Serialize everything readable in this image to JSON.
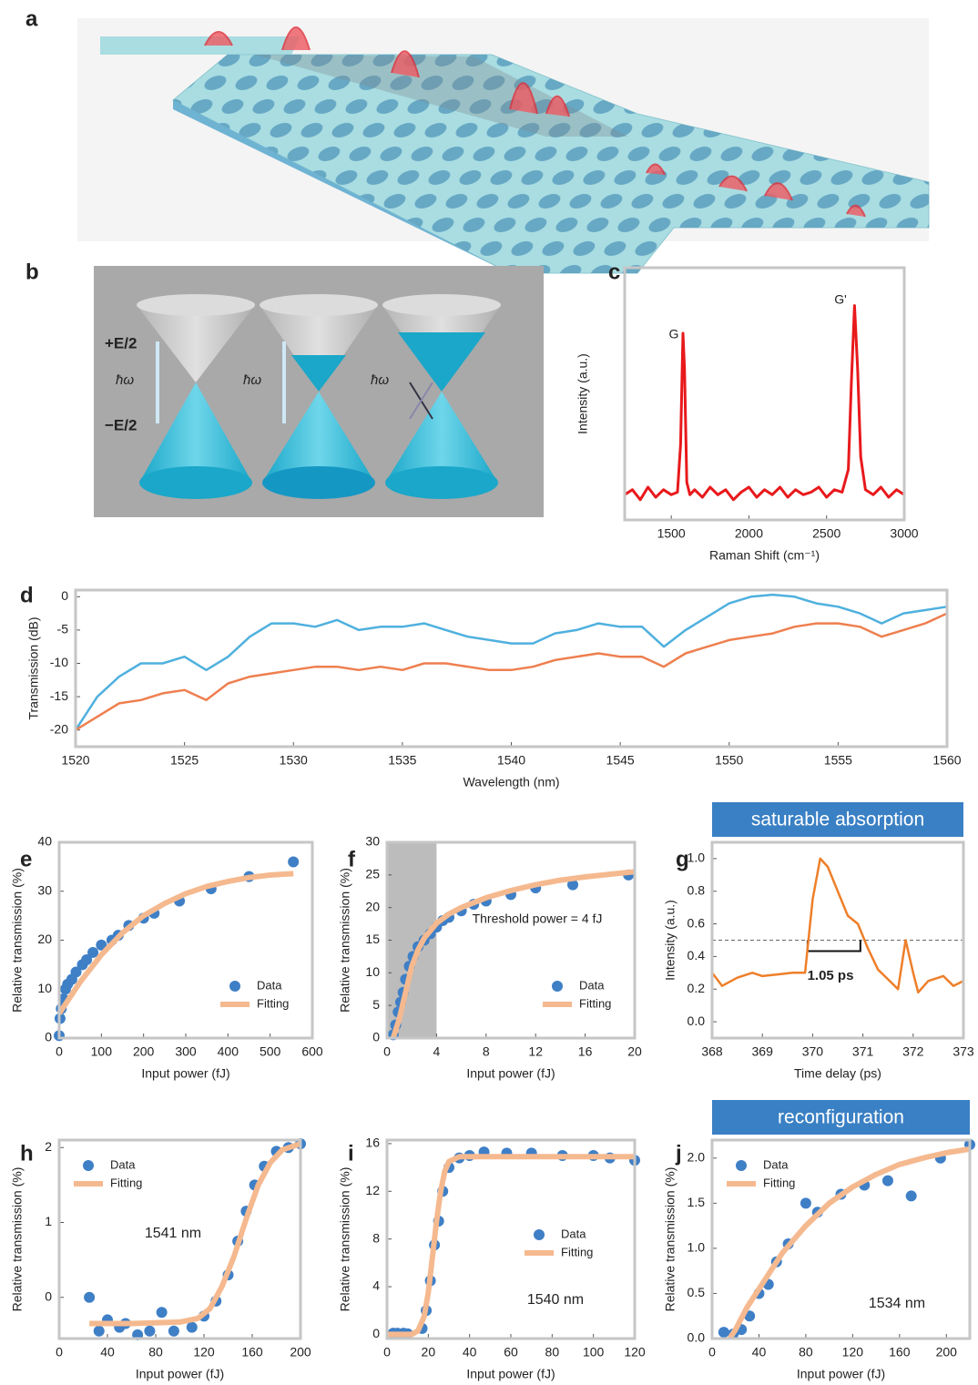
{
  "figure": {
    "panel_labels": [
      "a",
      "b",
      "c",
      "d",
      "e",
      "f",
      "g",
      "h",
      "i",
      "j"
    ],
    "b_labels": [
      "+E/2",
      "ħω",
      "ħω",
      "ħω",
      "−E/2"
    ]
  },
  "chart_data": [
    {
      "type": "line",
      "xlabel": "Raman Shift (cm⁻¹)",
      "ylabel": "Intensity (a.u.)",
      "xlim": [
        1200,
        3000
      ],
      "ylim": [
        0,
        1
      ],
      "xticks": [
        1500,
        2000,
        2500,
        3000
      ],
      "annotations": [
        "G",
        "G'"
      ],
      "series": [
        {
          "type": "line",
          "color": "#e8191c",
          "x": [
            1200,
            1250,
            1300,
            1350,
            1400,
            1450,
            1500,
            1540,
            1560,
            1575,
            1585,
            1600,
            1620,
            1650,
            1700,
            1750,
            1800,
            1850,
            1900,
            1950,
            2000,
            2050,
            2100,
            2150,
            2200,
            2250,
            2300,
            2350,
            2400,
            2450,
            2500,
            2550,
            2600,
            2640,
            2660,
            2680,
            2700,
            2720,
            2750,
            2800,
            2850,
            2900,
            2950,
            3000
          ],
          "values": [
            0.1,
            0.12,
            0.08,
            0.13,
            0.09,
            0.12,
            0.1,
            0.11,
            0.3,
            0.74,
            0.6,
            0.15,
            0.1,
            0.12,
            0.09,
            0.13,
            0.1,
            0.12,
            0.08,
            0.11,
            0.13,
            0.09,
            0.12,
            0.1,
            0.13,
            0.09,
            0.12,
            0.1,
            0.11,
            0.13,
            0.09,
            0.12,
            0.11,
            0.2,
            0.55,
            0.85,
            0.6,
            0.25,
            0.12,
            0.1,
            0.13,
            0.09,
            0.12,
            0.1
          ]
        }
      ]
    },
    {
      "type": "line",
      "xlabel": "Wavelength (nm)",
      "ylabel": "Transmission (dB)",
      "xlim": [
        1520,
        1560
      ],
      "ylim": [
        -22.5,
        1
      ],
      "xticks": [
        1520,
        1525,
        1530,
        1535,
        1540,
        1545,
        1550,
        1555,
        1560
      ],
      "yticks": [
        0,
        -5,
        -10,
        -15,
        -20
      ],
      "x": [
        1520,
        1521,
        1522,
        1523,
        1524,
        1525,
        1526,
        1527,
        1528,
        1529,
        1530,
        1531,
        1532,
        1533,
        1534,
        1535,
        1536,
        1537,
        1538,
        1539,
        1540,
        1541,
        1542,
        1543,
        1544,
        1545,
        1546,
        1547,
        1548,
        1549,
        1550,
        1551,
        1552,
        1553,
        1554,
        1555,
        1556,
        1557,
        1558,
        1559,
        1560
      ],
      "series": [
        {
          "type": "line",
          "color": "#4fb0de",
          "values": [
            -20,
            -15,
            -12,
            -10,
            -10,
            -9,
            -11,
            -9,
            -6,
            -4,
            -4,
            -4.5,
            -3.5,
            -5,
            -4.5,
            -4.5,
            -4,
            -5,
            -6,
            -6.5,
            -7,
            -7,
            -5.5,
            -5,
            -4,
            -4.5,
            -4.5,
            -7.5,
            -5,
            -3,
            -1,
            0,
            0.3,
            0,
            -1,
            -1.5,
            -2.5,
            -4,
            -2.5,
            -2,
            -1.5
          ]
        },
        {
          "type": "line",
          "color": "#ee7f4f",
          "values": [
            -20,
            -18,
            -16,
            -15.5,
            -14.5,
            -14,
            -15.5,
            -13,
            -12,
            -11.5,
            -11,
            -10.5,
            -10.5,
            -11,
            -10.5,
            -11,
            -10,
            -10,
            -10.5,
            -11,
            -11,
            -10.5,
            -9.5,
            -9,
            -8.5,
            -9,
            -9,
            -10.5,
            -8.5,
            -7.5,
            -6.5,
            -6,
            -5.5,
            -4.5,
            -4,
            -4,
            -4.5,
            -6,
            -5,
            -4,
            -2.5
          ]
        }
      ]
    },
    {
      "type": "scatter",
      "xlabel": "Input power (fJ)",
      "ylabel": "Relative transmission (%)",
      "xlim": [
        0,
        600
      ],
      "ylim": [
        0,
        40
      ],
      "xticks": [
        0,
        100,
        200,
        300,
        400,
        500,
        600
      ],
      "yticks": [
        0,
        10,
        20,
        30,
        40
      ],
      "legend": "lower right",
      "series": [
        {
          "type": "scatter",
          "name": "Data",
          "color": "#3f7fc6",
          "x": [
            0,
            2,
            5,
            10,
            15,
            20,
            30,
            40,
            55,
            65,
            80,
            100,
            125,
            140,
            165,
            200,
            225,
            285,
            360,
            450,
            555
          ],
          "values": [
            0.5,
            4,
            6,
            8,
            10,
            11,
            12,
            13.5,
            15,
            16,
            17.5,
            19,
            20,
            21,
            23,
            24.5,
            25.5,
            28,
            30.5,
            33,
            36
          ]
        },
        {
          "type": "line",
          "name": "Fitting",
          "color": "#f5b98f",
          "x": [
            0,
            50,
            100,
            150,
            200,
            250,
            300,
            350,
            400,
            450,
            500,
            555
          ],
          "values": [
            5,
            11.5,
            17,
            21.5,
            25,
            27.5,
            29.5,
            31,
            32,
            32.8,
            33.3,
            33.6
          ]
        }
      ]
    },
    {
      "type": "scatter",
      "xlabel": "Input power (fJ)",
      "ylabel": "Relative transmission (%)",
      "xlim": [
        0,
        20
      ],
      "ylim": [
        0,
        30
      ],
      "xticks": [
        0,
        4,
        8,
        12,
        16,
        20
      ],
      "yticks": [
        0,
        5,
        10,
        15,
        20,
        25,
        30
      ],
      "legend": "lower right",
      "highlight_span": [
        0,
        4
      ],
      "annotations": [
        "Threshold power = 4 fJ"
      ],
      "series": [
        {
          "type": "scatter",
          "name": "Data",
          "color": "#3f7fc6",
          "x": [
            0.5,
            0.7,
            0.9,
            1.1,
            1.3,
            1.5,
            1.8,
            2.1,
            2.5,
            3,
            3.5,
            4,
            4.5,
            5,
            6,
            7,
            8,
            10,
            12,
            15,
            19.5
          ],
          "values": [
            0.5,
            2,
            4,
            5.5,
            7,
            9,
            11,
            12.5,
            14,
            15,
            16,
            17,
            18,
            18.5,
            19.5,
            20.5,
            21,
            22,
            23,
            23.5,
            25
          ]
        },
        {
          "type": "line",
          "name": "Fitting",
          "color": "#f5b98f",
          "x": [
            0.5,
            1,
            1.5,
            2,
            2.5,
            3,
            4,
            5,
            6,
            8,
            10,
            12,
            14,
            16,
            18,
            20
          ],
          "values": [
            0,
            3,
            7,
            11,
            13.5,
            15.3,
            17.6,
            19,
            20,
            21.5,
            22.6,
            23.5,
            24.2,
            24.7,
            25.1,
            25.5
          ]
        }
      ]
    },
    {
      "type": "line",
      "title": "saturable absorption",
      "xlabel": "Time delay (ps)",
      "ylabel": "Intensity (a.u.)",
      "xlim": [
        368,
        373
      ],
      "ylim": [
        -0.1,
        1.1
      ],
      "xticks": [
        368,
        369,
        370,
        371,
        372,
        373
      ],
      "yticks": [
        {
          "value": 0,
          "label": "0.0"
        },
        {
          "value": 0.2,
          "label": "0.2"
        },
        {
          "value": 0.4,
          "label": "0.4"
        },
        {
          "value": 0.6,
          "label": "0.6"
        },
        {
          "value": 0.8,
          "label": "0.8"
        },
        {
          "value": 1,
          "label": "1.0"
        }
      ],
      "reference_line": 0.5,
      "bracket": [
        369.9,
        370.95
      ],
      "annotations": [
        "1.05 ps"
      ],
      "series": [
        {
          "type": "line",
          "color": "#ee7f2a",
          "x": [
            368,
            368.2,
            368.5,
            368.8,
            369,
            369.3,
            369.6,
            369.85,
            370,
            370.15,
            370.3,
            370.5,
            370.7,
            370.9,
            371.1,
            371.3,
            371.5,
            371.7,
            371.85,
            372,
            372.1,
            372.3,
            372.6,
            372.8,
            373
          ],
          "values": [
            0.3,
            0.22,
            0.27,
            0.3,
            0.28,
            0.29,
            0.3,
            0.3,
            0.75,
            1,
            0.95,
            0.8,
            0.65,
            0.6,
            0.45,
            0.32,
            0.26,
            0.2,
            0.5,
            0.3,
            0.18,
            0.25,
            0.28,
            0.22,
            0.25
          ]
        }
      ]
    },
    {
      "type": "scatter",
      "xlabel": "Input power (fJ)",
      "ylabel": "Relative transmission (%)",
      "xlim": [
        0,
        200
      ],
      "ylim": [
        -0.55,
        2.1
      ],
      "xticks": [
        0,
        40,
        80,
        120,
        160,
        200
      ],
      "yticks": [
        0,
        1,
        2
      ],
      "legend": "upper left",
      "annotations": [
        "1541 nm"
      ],
      "series": [
        {
          "type": "scatter",
          "name": "Data",
          "color": "#3f7fc6",
          "x": [
            25,
            33,
            40,
            50,
            55,
            65,
            75,
            85,
            95,
            110,
            120,
            130,
            140,
            148,
            155,
            162,
            170,
            180,
            190,
            200
          ],
          "values": [
            0,
            -0.45,
            -0.3,
            -0.4,
            -0.35,
            -0.5,
            -0.45,
            -0.2,
            -0.45,
            -0.4,
            -0.25,
            -0.05,
            0.3,
            0.75,
            1.15,
            1.5,
            1.75,
            1.95,
            2,
            2.05
          ]
        },
        {
          "type": "line",
          "name": "Fitting",
          "color": "#f5b98f",
          "x": [
            25,
            60,
            100,
            115,
            125,
            135,
            145,
            155,
            165,
            175,
            185,
            200
          ],
          "values": [
            -0.35,
            -0.35,
            -0.33,
            -0.28,
            -0.15,
            0.15,
            0.55,
            1.05,
            1.5,
            1.8,
            1.97,
            2.05
          ]
        }
      ]
    },
    {
      "type": "scatter",
      "xlabel": "Input power (fJ)",
      "ylabel": "Relative transmission (%)",
      "xlim": [
        0,
        120
      ],
      "ylim": [
        -0.35,
        16.3
      ],
      "xticks": [
        0,
        20,
        40,
        60,
        80,
        100,
        120
      ],
      "yticks": [
        0,
        4,
        8,
        12,
        16
      ],
      "legend": "center right",
      "annotations": [
        "1540 nm"
      ],
      "series": [
        {
          "type": "scatter",
          "name": "Data",
          "color": "#3f7fc6",
          "x": [
            3,
            5,
            8,
            10,
            17,
            19,
            21,
            23,
            25,
            27,
            30,
            35,
            40,
            47,
            58,
            70,
            85,
            100,
            108,
            120
          ],
          "values": [
            0.1,
            0.1,
            0.1,
            0.05,
            0.5,
            2,
            4.5,
            7.5,
            9.5,
            12,
            14,
            14.8,
            15,
            15.3,
            15.2,
            15.2,
            15,
            15,
            14.8,
            14.6
          ]
        },
        {
          "type": "line",
          "name": "Fitting",
          "color": "#f5b98f",
          "x": [
            0,
            12,
            15,
            18,
            20,
            22,
            24,
            26,
            28,
            30,
            35,
            120
          ],
          "values": [
            0,
            0,
            0.3,
            1.5,
            3.5,
            6.5,
            9.5,
            12,
            13.7,
            14.5,
            14.9,
            14.9
          ]
        }
      ]
    },
    {
      "type": "scatter",
      "title": "reconfiguration",
      "xlabel": "Input power (fJ)",
      "ylabel": "Relative transmission (%)",
      "xlim": [
        0,
        220
      ],
      "ylim": [
        0,
        2.2
      ],
      "xticks": [
        0,
        40,
        80,
        120,
        160,
        200
      ],
      "yticks": [
        {
          "value": 0,
          "label": "0.0"
        },
        {
          "value": 0.5,
          "label": "0.5"
        },
        {
          "value": 1,
          "label": "1.0"
        },
        {
          "value": 1.5,
          "label": "1.5"
        },
        {
          "value": 2,
          "label": "2.0"
        }
      ],
      "legend": "upper left",
      "annotations": [
        "1534 nm"
      ],
      "series": [
        {
          "type": "scatter",
          "name": "Data",
          "color": "#3f7fc6",
          "x": [
            10,
            18,
            25,
            32,
            40,
            48,
            55,
            65,
            80,
            90,
            110,
            130,
            150,
            170,
            195,
            220
          ],
          "values": [
            0.07,
            0.05,
            0.1,
            0.25,
            0.5,
            0.6,
            0.85,
            1.05,
            1.5,
            1.4,
            1.6,
            1.7,
            1.75,
            1.58,
            2,
            2.15
          ]
        },
        {
          "type": "line",
          "name": "Fitting",
          "color": "#f5b98f",
          "x": [
            15,
            20,
            30,
            40,
            60,
            80,
            100,
            120,
            140,
            160,
            180,
            200,
            220
          ],
          "values": [
            0,
            0.1,
            0.35,
            0.55,
            0.95,
            1.25,
            1.5,
            1.68,
            1.82,
            1.93,
            2,
            2.06,
            2.1
          ]
        }
      ]
    }
  ]
}
